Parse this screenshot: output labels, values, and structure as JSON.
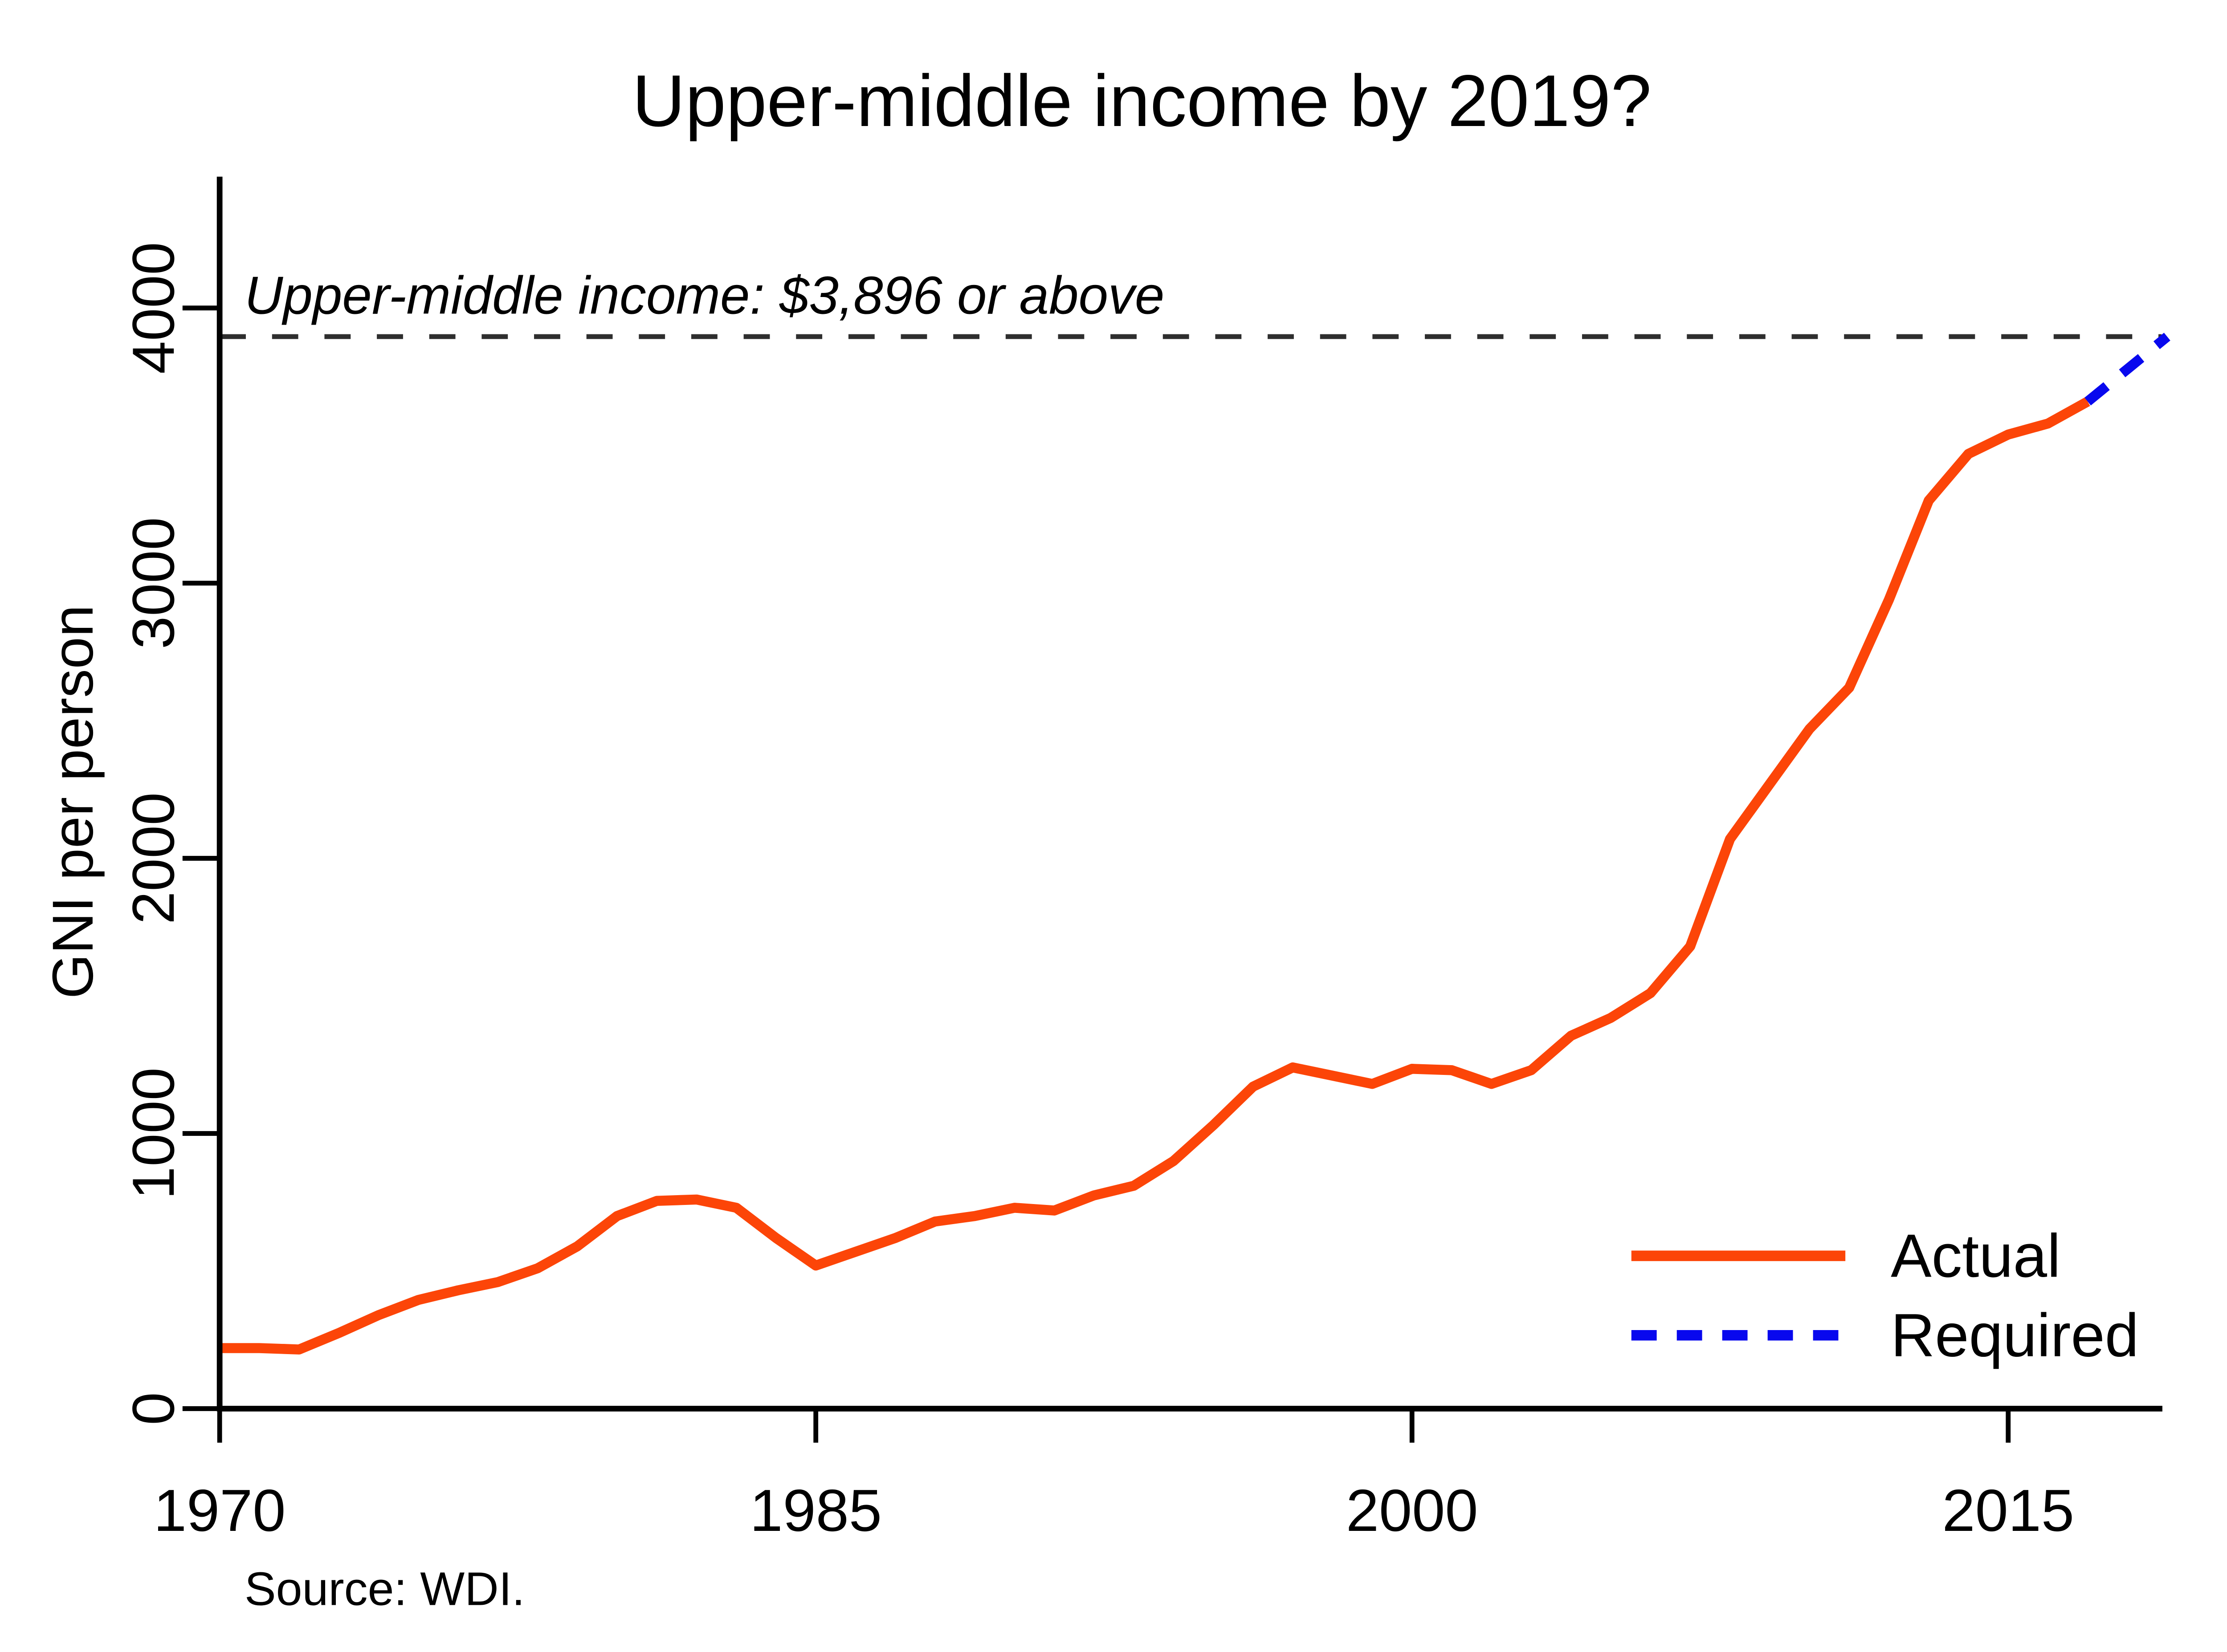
{
  "chart_data": {
    "type": "line",
    "title": "Upper-middle income by 2019?",
    "xlabel": "",
    "ylabel": "GNI per person",
    "source_note": "Source: WDI.",
    "x_ticks": [
      1970,
      1985,
      2000,
      2015
    ],
    "y_ticks": [
      0,
      1000,
      2000,
      3000,
      4000
    ],
    "xlim": [
      1970,
      2019.3
    ],
    "ylim": [
      0,
      4480
    ],
    "grid": false,
    "legend_position": "bottom-right",
    "threshold": {
      "value": 3896,
      "label": "Upper-middle income: $3,896 or above",
      "color": "#2e2e2e"
    },
    "series": [
      {
        "name": "Actual",
        "style": "solid",
        "color": "#FC4508",
        "points": [
          [
            1970,
            220
          ],
          [
            1971,
            220
          ],
          [
            1972,
            215
          ],
          [
            1973,
            275
          ],
          [
            1974,
            340
          ],
          [
            1975,
            395
          ],
          [
            1976,
            430
          ],
          [
            1977,
            460
          ],
          [
            1978,
            510
          ],
          [
            1979,
            590
          ],
          [
            1980,
            700
          ],
          [
            1981,
            755
          ],
          [
            1982,
            760
          ],
          [
            1983,
            730
          ],
          [
            1984,
            620
          ],
          [
            1985,
            520
          ],
          [
            1986,
            570
          ],
          [
            1987,
            620
          ],
          [
            1988,
            680
          ],
          [
            1989,
            700
          ],
          [
            1990,
            730
          ],
          [
            1991,
            720
          ],
          [
            1992,
            775
          ],
          [
            1993,
            810
          ],
          [
            1994,
            900
          ],
          [
            1995,
            1030
          ],
          [
            1996,
            1170
          ],
          [
            1997,
            1240
          ],
          [
            1998,
            1210
          ],
          [
            1999,
            1180
          ],
          [
            2000,
            1235
          ],
          [
            2001,
            1230
          ],
          [
            2002,
            1180
          ],
          [
            2003,
            1230
          ],
          [
            2004,
            1355
          ],
          [
            2005,
            1420
          ],
          [
            2006,
            1510
          ],
          [
            2007,
            1680
          ],
          [
            2008,
            2070
          ],
          [
            2009,
            2270
          ],
          [
            2010,
            2470
          ],
          [
            2011,
            2620
          ],
          [
            2012,
            2940
          ],
          [
            2013,
            3300
          ],
          [
            2014,
            3470
          ],
          [
            2015,
            3540
          ],
          [
            2016,
            3580
          ],
          [
            2017,
            3660
          ]
        ]
      },
      {
        "name": "Required",
        "style": "dashed",
        "color": "#0808EE",
        "points": [
          [
            2017,
            3660
          ],
          [
            2018,
            3778
          ],
          [
            2019,
            3896
          ]
        ]
      }
    ]
  }
}
